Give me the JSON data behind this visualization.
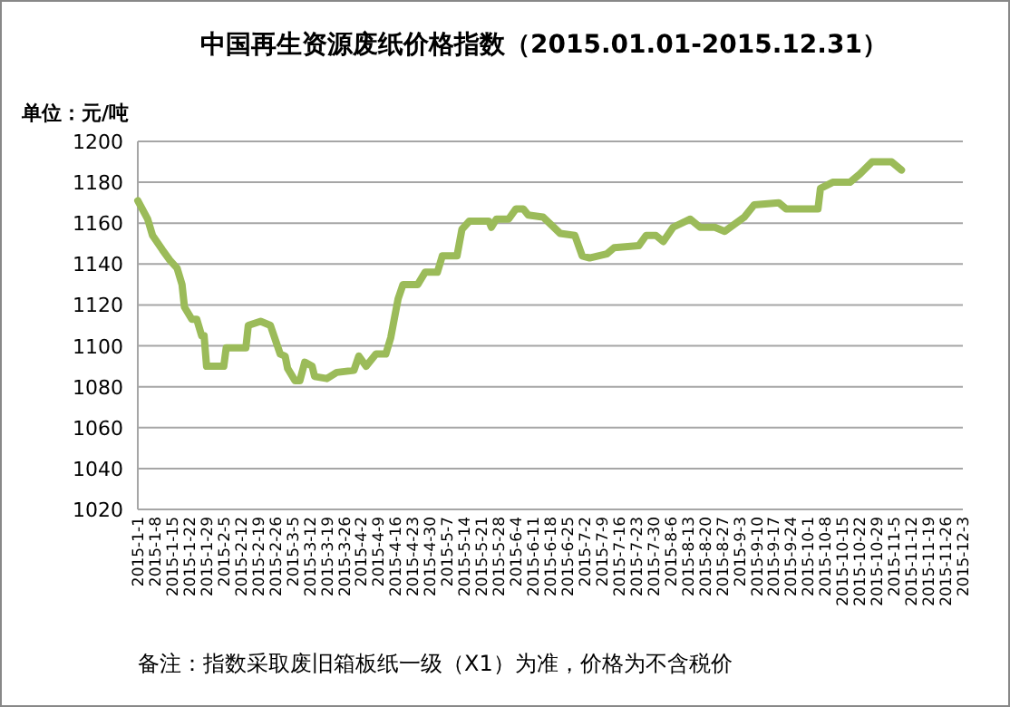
{
  "chart_data": {
    "type": "line",
    "title": "中国再生资源废纸价格指数（2015.01.01-2015.12.31）",
    "ylabel": "单位：元/吨",
    "annotations": [
      "备注：指数采取废旧箱板纸一级（X1）为准，价格为不含税价"
    ],
    "x": [
      "2015-01-01",
      "2015-01-05",
      "2015-01-07",
      "2015-01-11",
      "2015-01-14",
      "2015-01-17",
      "2015-01-19",
      "2015-01-20",
      "2015-01-23",
      "2015-01-25",
      "2015-01-27",
      "2015-01-28",
      "2015-01-29",
      "2015-02-05",
      "2015-02-06",
      "2015-02-14",
      "2015-02-15",
      "2015-02-20",
      "2015-02-24",
      "2015-02-28",
      "2015-03-02",
      "2015-03-03",
      "2015-03-06",
      "2015-03-08",
      "2015-03-10",
      "2015-03-13",
      "2015-03-14",
      "2015-03-19",
      "2015-03-23",
      "2015-03-30",
      "2015-04-01",
      "2015-04-04",
      "2015-04-08",
      "2015-04-12",
      "2015-04-14",
      "2015-04-17",
      "2015-04-19",
      "2015-04-25",
      "2015-04-28",
      "2015-05-03",
      "2015-05-05",
      "2015-05-11",
      "2015-05-13",
      "2015-05-16",
      "2015-05-24",
      "2015-05-25",
      "2015-05-27",
      "2015-06-01",
      "2015-06-04",
      "2015-06-07",
      "2015-06-09",
      "2015-06-15",
      "2015-06-22",
      "2015-06-28",
      "2015-07-01",
      "2015-07-04",
      "2015-07-11",
      "2015-07-14",
      "2015-07-24",
      "2015-07-27",
      "2015-07-31",
      "2015-08-03",
      "2015-08-07",
      "2015-08-14",
      "2015-08-18",
      "2015-08-24",
      "2015-08-28",
      "2015-09-05",
      "2015-09-09",
      "2015-09-19",
      "2015-09-22",
      "2015-10-05",
      "2015-10-06",
      "2015-10-11",
      "2015-10-18",
      "2015-10-22",
      "2015-10-27",
      "2015-11-04",
      "2015-11-08"
    ],
    "series": [
      {
        "color": "#9bbb59",
        "values": [
          1171,
          1162,
          1154,
          1147,
          1142,
          1138,
          1130,
          1119,
          1113,
          1113,
          1105,
          1105,
          1090,
          1090,
          1099,
          1099,
          1110,
          1112,
          1110,
          1096,
          1095,
          1089,
          1083,
          1083,
          1092,
          1090,
          1085,
          1084,
          1087,
          1088,
          1095,
          1090,
          1096,
          1096,
          1104,
          1123,
          1130,
          1130,
          1136,
          1136,
          1144,
          1144,
          1157,
          1161,
          1161,
          1158,
          1162,
          1162,
          1167,
          1167,
          1164,
          1163,
          1155,
          1154,
          1144,
          1143,
          1145,
          1148,
          1149,
          1154,
          1154,
          1151,
          1158,
          1162,
          1158,
          1158,
          1156,
          1163,
          1169,
          1170,
          1167,
          1167,
          1177,
          1180,
          1180,
          1184,
          1190,
          1190,
          1186
        ]
      }
    ],
    "xlim": [
      "2015-01-01",
      "2015-12-03"
    ],
    "xticks": [
      {
        "value": "2015-01-01",
        "label": "2015-1-1"
      },
      {
        "value": "2015-01-08",
        "label": "2015-1-8"
      },
      {
        "value": "2015-01-15",
        "label": "2015-1-15"
      },
      {
        "value": "2015-01-22",
        "label": "2015-1-22"
      },
      {
        "value": "2015-01-29",
        "label": "2015-1-29"
      },
      {
        "value": "2015-02-05",
        "label": "2015-2-5"
      },
      {
        "value": "2015-02-12",
        "label": "2015-2-12"
      },
      {
        "value": "2015-02-19",
        "label": "2015-2-19"
      },
      {
        "value": "2015-02-26",
        "label": "2015-2-26"
      },
      {
        "value": "2015-03-05",
        "label": "2015-3-5"
      },
      {
        "value": "2015-03-12",
        "label": "2015-3-12"
      },
      {
        "value": "2015-03-19",
        "label": "2015-3-19"
      },
      {
        "value": "2015-03-26",
        "label": "2015-3-26"
      },
      {
        "value": "2015-04-02",
        "label": "2015-4-2"
      },
      {
        "value": "2015-04-09",
        "label": "2015-4-9"
      },
      {
        "value": "2015-04-16",
        "label": "2015-4-16"
      },
      {
        "value": "2015-04-23",
        "label": "2015-4-23"
      },
      {
        "value": "2015-04-30",
        "label": "2015-4-30"
      },
      {
        "value": "2015-05-07",
        "label": "2015-5-7"
      },
      {
        "value": "2015-05-14",
        "label": "2015-5-14"
      },
      {
        "value": "2015-05-21",
        "label": "2015-5-21"
      },
      {
        "value": "2015-05-28",
        "label": "2015-5-28"
      },
      {
        "value": "2015-06-04",
        "label": "2015-6-4"
      },
      {
        "value": "2015-06-11",
        "label": "2015-6-11"
      },
      {
        "value": "2015-06-18",
        "label": "2015-6-18"
      },
      {
        "value": "2015-06-25",
        "label": "2015-6-25"
      },
      {
        "value": "2015-07-02",
        "label": "2015-7-2"
      },
      {
        "value": "2015-07-09",
        "label": "2015-7-9"
      },
      {
        "value": "2015-07-16",
        "label": "2015-7-16"
      },
      {
        "value": "2015-07-23",
        "label": "2015-7-23"
      },
      {
        "value": "2015-07-30",
        "label": "2015-7-30"
      },
      {
        "value": "2015-08-06",
        "label": "2015-8-6"
      },
      {
        "value": "2015-08-13",
        "label": "2015-8-13"
      },
      {
        "value": "2015-08-20",
        "label": "2015-8-20"
      },
      {
        "value": "2015-08-27",
        "label": "2015-8-27"
      },
      {
        "value": "2015-09-03",
        "label": "2015-9-3"
      },
      {
        "value": "2015-09-10",
        "label": "2015-9-10"
      },
      {
        "value": "2015-09-17",
        "label": "2015-9-17"
      },
      {
        "value": "2015-09-24",
        "label": "2015-9-24"
      },
      {
        "value": "2015-10-01",
        "label": "2015-10-1"
      },
      {
        "value": "2015-10-08",
        "label": "2015-10-8"
      },
      {
        "value": "2015-10-15",
        "label": "2015-10-15"
      },
      {
        "value": "2015-10-22",
        "label": "2015-10-22"
      },
      {
        "value": "2015-10-29",
        "label": "2015-10-29"
      },
      {
        "value": "2015-11-05",
        "label": "2015-11-5"
      },
      {
        "value": "2015-11-12",
        "label": "2015-11-12"
      },
      {
        "value": "2015-11-19",
        "label": "2015-11-19"
      },
      {
        "value": "2015-11-26",
        "label": "2015-11-26"
      },
      {
        "value": "2015-12-03",
        "label": "2015-12-3"
      }
    ],
    "ylim": [
      1020,
      1200
    ],
    "yticks": [
      1020,
      1040,
      1060,
      1080,
      1100,
      1120,
      1140,
      1160,
      1180,
      1200
    ],
    "grid": "y",
    "marker": "none",
    "line_style": "solid"
  }
}
